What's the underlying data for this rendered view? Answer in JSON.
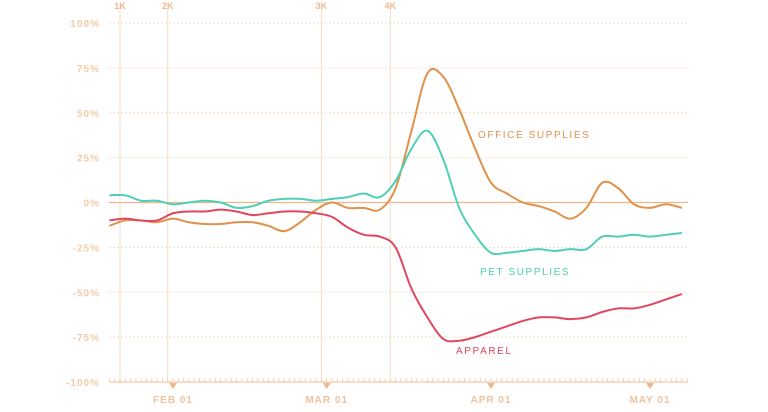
{
  "chart_data": {
    "type": "line",
    "title": "",
    "xlabel": "",
    "ylabel": "",
    "ylim": [
      -100,
      100
    ],
    "yticks": [
      "100%",
      "75%",
      "50%",
      "25%",
      "0%",
      "-25%",
      "-50%",
      "-75%",
      "-100%"
    ],
    "ytick_values": [
      100,
      75,
      50,
      25,
      0,
      -25,
      -50,
      -75,
      -100
    ],
    "xticks": [
      {
        "label": "FEB 01",
        "date": "2020-02-01"
      },
      {
        "label": "MAR 01",
        "date": "2020-03-01"
      },
      {
        "label": "APR 01",
        "date": "2020-04-01"
      },
      {
        "label": "MAY 01",
        "date": "2020-05-01"
      }
    ],
    "xlim": [
      "2020-01-20",
      "2020-05-08"
    ],
    "grid": "horizontal dotted",
    "markers": [
      {
        "label": "1K",
        "date": "2020-01-22"
      },
      {
        "label": "2K",
        "date": "2020-01-31"
      },
      {
        "label": "3K",
        "date": "2020-02-29"
      },
      {
        "label": "4K",
        "date": "2020-03-13"
      }
    ],
    "x": [
      "2020-01-20",
      "2020-01-23",
      "2020-01-26",
      "2020-01-29",
      "2020-02-01",
      "2020-02-04",
      "2020-02-07",
      "2020-02-10",
      "2020-02-13",
      "2020-02-16",
      "2020-02-19",
      "2020-02-22",
      "2020-02-25",
      "2020-02-28",
      "2020-03-02",
      "2020-03-05",
      "2020-03-08",
      "2020-03-11",
      "2020-03-14",
      "2020-03-17",
      "2020-03-20",
      "2020-03-23",
      "2020-03-26",
      "2020-03-29",
      "2020-04-01",
      "2020-04-04",
      "2020-04-07",
      "2020-04-10",
      "2020-04-13",
      "2020-04-16",
      "2020-04-19",
      "2020-04-22",
      "2020-04-25",
      "2020-04-28",
      "2020-05-01",
      "2020-05-04",
      "2020-05-07"
    ],
    "series": [
      {
        "name": "OFFICE SUPPLIES",
        "color": "#e0914a",
        "values": [
          -13,
          -10,
          -10,
          -11,
          -9,
          -11,
          -12,
          -12,
          -11,
          -11,
          -13,
          -16,
          -11,
          -4,
          0,
          -3,
          -3,
          -4,
          8,
          40,
          72,
          70,
          52,
          30,
          11,
          5,
          0,
          -2,
          -5,
          -9,
          -3,
          11,
          8,
          -1,
          -3,
          -1,
          -3
        ]
      },
      {
        "name": "PET SUPPLIES",
        "color": "#4fcfb5",
        "values": [
          4,
          4,
          1,
          1,
          -1,
          0,
          1,
          0,
          -3,
          -2,
          1,
          2,
          2,
          1,
          2,
          3,
          5,
          3,
          12,
          30,
          40,
          24,
          -3,
          -18,
          -28,
          -28,
          -27,
          -26,
          -27,
          -26,
          -26,
          -19,
          -19,
          -18,
          -19,
          -18,
          -17
        ]
      },
      {
        "name": "APPAREL",
        "color": "#e0475f",
        "values": [
          -10,
          -9,
          -10,
          -10,
          -6,
          -5,
          -5,
          -4,
          -5,
          -7,
          -6,
          -5,
          -5,
          -6,
          -8,
          -14,
          -18,
          -19,
          -25,
          -48,
          -64,
          -76,
          -77,
          -75,
          -72,
          -69,
          -66,
          -64,
          -64,
          -65,
          -64,
          -61,
          -59,
          -59,
          -57,
          -54,
          -51
        ]
      }
    ],
    "colors": {
      "axis": "#f2cba9",
      "zero_line": "#eeb58a",
      "marker_line": "#f5dcc7"
    }
  }
}
